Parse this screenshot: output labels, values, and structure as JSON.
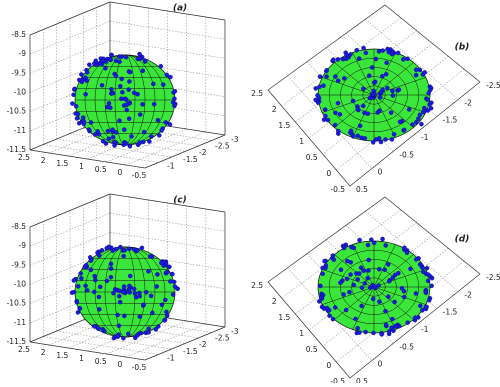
{
  "panels": [
    {
      "label": "(a)",
      "z_ticks": [
        -8.5,
        -9,
        -9.5,
        -10,
        -10.5,
        -11,
        -11.5
      ],
      "front_ticks": [
        2.5,
        2,
        1.5,
        1,
        0.5,
        0,
        -0.5
      ],
      "right_ticks": [
        -1,
        -1.5,
        -2,
        -2.5,
        -3
      ]
    },
    {
      "label": "(b)",
      "left_ticks": [
        2.5,
        2,
        1.5,
        1,
        0.5,
        0,
        -0.5
      ],
      "right_ticks": [
        -2.5,
        -2,
        -1.5,
        -1,
        -0.5,
        0,
        0.5
      ]
    },
    {
      "label": "(c)",
      "z_ticks": [
        -8.5,
        -9,
        -9.5,
        -10,
        -10.5,
        -11,
        -11.5
      ],
      "front_ticks": [
        2.5,
        2,
        1.5,
        1,
        0.5,
        0,
        -0.5
      ],
      "right_ticks": [
        -1,
        -1.5,
        -2,
        -2.5,
        -3
      ]
    },
    {
      "label": "(d)",
      "left_ticks": [
        2.5,
        2,
        1.5,
        1,
        0.5,
        0,
        -0.5
      ],
      "right_ticks": [
        -2.5,
        -2,
        -1.5,
        -1,
        -0.5,
        0,
        0.5
      ]
    }
  ]
}
